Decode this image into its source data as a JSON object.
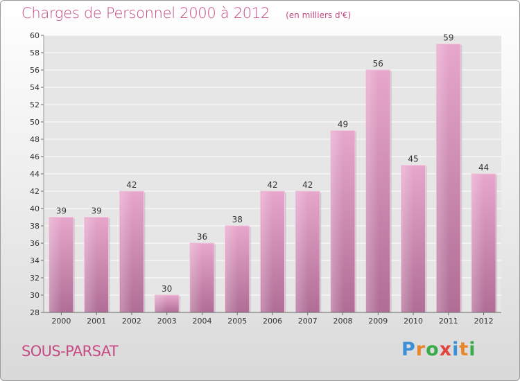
{
  "title": "Charges de Personnel 2000 à 2012",
  "subtitle": "(en milliers d'€)",
  "commune": "SOUS-PARSAT",
  "logo": {
    "letters": [
      {
        "ch": "P",
        "color": "#3a8fd6"
      },
      {
        "ch": "r",
        "color": "#e8862a"
      },
      {
        "ch": "o",
        "color": "#3aab4a"
      },
      {
        "ch": "x",
        "color": "#e0443c"
      },
      {
        "ch": "i",
        "color": "#3a8fd6"
      },
      {
        "ch": "t",
        "color": "#e8862a"
      },
      {
        "ch": "i",
        "color": "#3aab4a"
      }
    ]
  },
  "chart_data": {
    "type": "bar",
    "categories": [
      "2000",
      "2001",
      "2002",
      "2003",
      "2004",
      "2005",
      "2006",
      "2007",
      "2008",
      "2009",
      "2010",
      "2011",
      "2012"
    ],
    "values": [
      39,
      39,
      42,
      30,
      36,
      38,
      42,
      42,
      49,
      56,
      45,
      59,
      44
    ],
    "title": "Charges de Personnel 2000 à 2012",
    "ylim": [
      28,
      60
    ],
    "yticks": [
      28,
      30,
      32,
      34,
      36,
      38,
      40,
      42,
      44,
      46,
      48,
      50,
      52,
      54,
      56,
      58,
      60
    ],
    "grid": true,
    "bar_color": "#d98db6"
  }
}
